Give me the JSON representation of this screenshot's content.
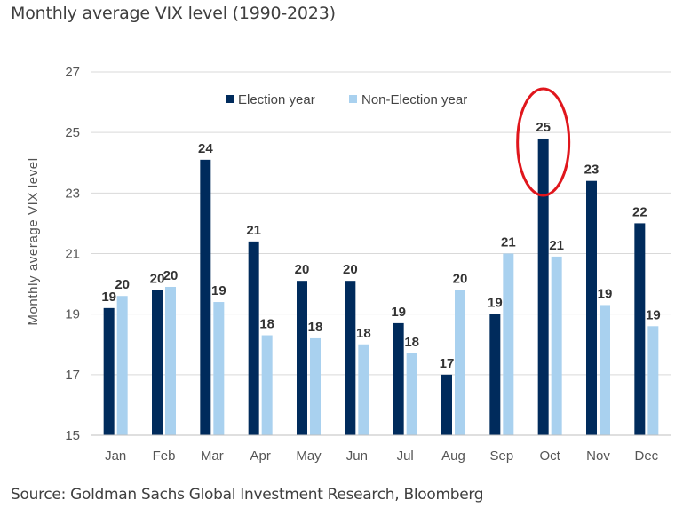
{
  "title": "Monthly average VIX level (1990-2023)",
  "source": "Source: Goldman Sachs Global Investment Research, Bloomberg",
  "chart_data": {
    "type": "bar",
    "ylabel": "Monthly average  VIX level",
    "xlabel": "",
    "ylim": [
      15,
      27
    ],
    "yticks": [
      15,
      17,
      19,
      21,
      23,
      25,
      27
    ],
    "grid": true,
    "legend_position": "top",
    "categories": [
      "Jan",
      "Feb",
      "Mar",
      "Apr",
      "May",
      "Jun",
      "Jul",
      "Aug",
      "Sep",
      "Oct",
      "Nov",
      "Dec"
    ],
    "series": [
      {
        "name": "Election year",
        "color": "#002b5c",
        "values": [
          19.2,
          19.8,
          24.1,
          21.4,
          20.1,
          20.1,
          18.7,
          17.0,
          19.0,
          24.8,
          23.4,
          22.0
        ],
        "labels": [
          "19",
          "20",
          "24",
          "21",
          "20",
          "20",
          "19",
          "17",
          "19",
          "25",
          "23",
          "22"
        ]
      },
      {
        "name": "Non-Election year",
        "color": "#a9d1ef",
        "values": [
          19.6,
          19.9,
          19.4,
          18.3,
          18.2,
          18.0,
          17.7,
          19.8,
          21.0,
          20.9,
          19.3,
          18.6
        ],
        "labels": [
          "20",
          "20",
          "19",
          "18",
          "18",
          "18",
          "18",
          "20",
          "21",
          "21",
          "19",
          "19"
        ]
      }
    ],
    "highlight": {
      "category": "Oct",
      "series": "Election year",
      "color": "#e0161c"
    }
  }
}
